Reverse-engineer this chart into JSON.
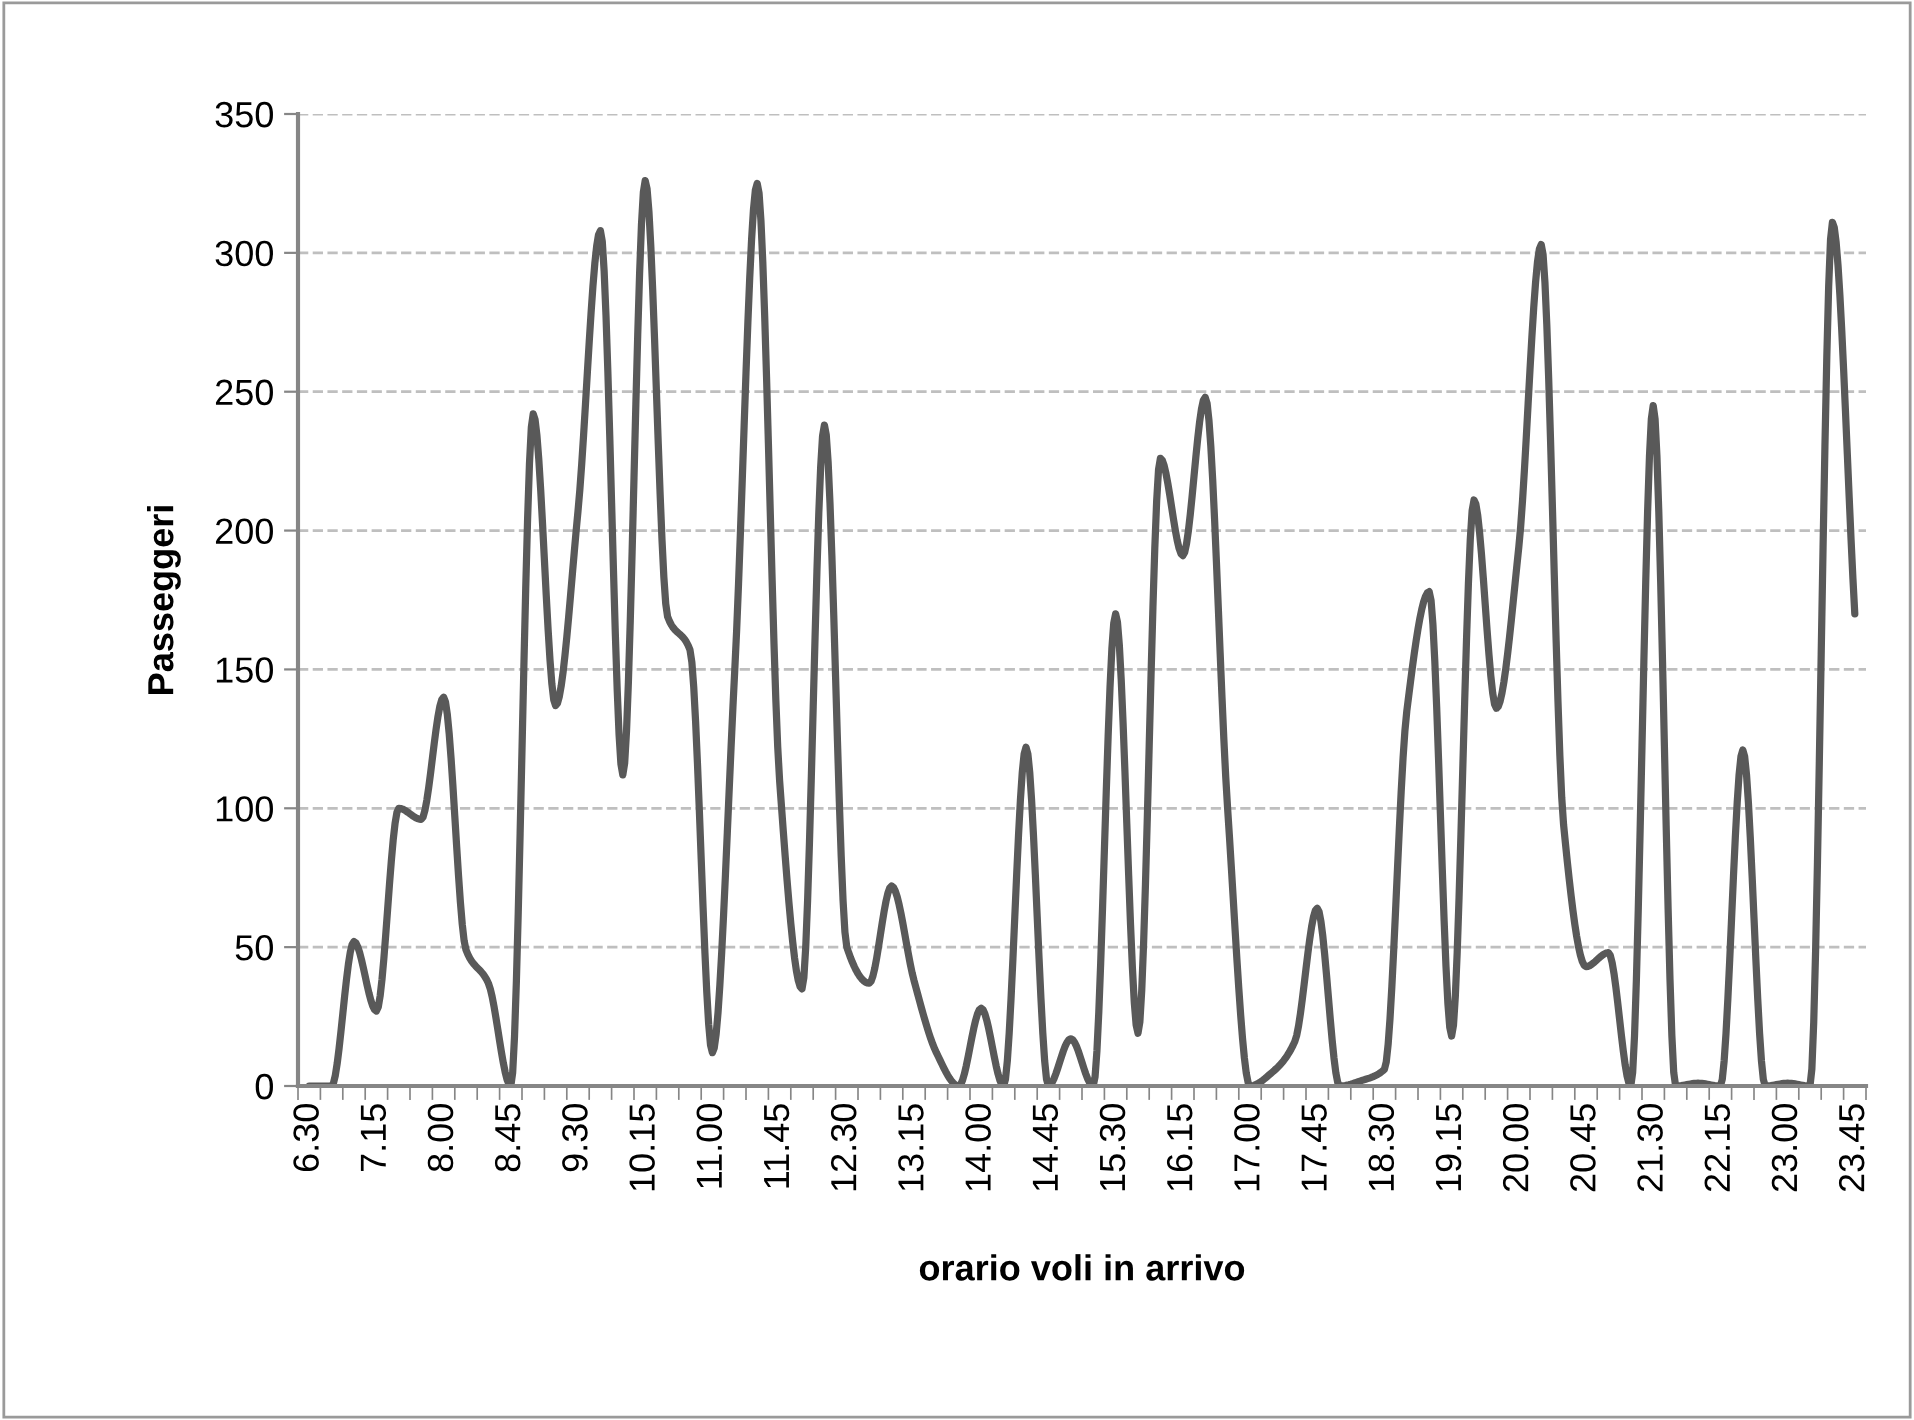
{
  "chart_data": {
    "type": "line",
    "xlabel": "orario voli in arrivo",
    "ylabel": "Passeggeri",
    "categories": [
      "6.30",
      null,
      null,
      "7.15",
      null,
      null,
      "8.00",
      null,
      null,
      "8.45",
      null,
      null,
      "9.30",
      null,
      null,
      "10.15",
      null,
      null,
      "11.00",
      null,
      null,
      "11.45",
      null,
      null,
      "12.30",
      null,
      null,
      "13.15",
      null,
      null,
      "14.00",
      null,
      null,
      "14.45",
      null,
      null,
      "15.30",
      null,
      null,
      "16.15",
      null,
      null,
      "17.00",
      null,
      null,
      "17.45",
      null,
      null,
      "18.30",
      null,
      null,
      "19.15",
      null,
      null,
      "20.00",
      null,
      null,
      "20.45",
      null,
      null,
      "21.30",
      null,
      null,
      "22.15",
      null,
      null,
      "23.00",
      null,
      null,
      "23.45"
    ],
    "series": [
      {
        "color": "#595959",
        "values": [
          0,
          0,
          52,
          27,
          100,
          96,
          140,
          49,
          37,
          0,
          242,
          137,
          207,
          308,
          112,
          326,
          169,
          157,
          12,
          150,
          325,
          110,
          35,
          238,
          50,
          37,
          72,
          38,
          12,
          0,
          28,
          0,
          122,
          0,
          17,
          0,
          170,
          19,
          226,
          191,
          248,
          100,
          0,
          5,
          16,
          64,
          0,
          2,
          6,
          135,
          178,
          18,
          211,
          136,
          194,
          303,
          94,
          43,
          48,
          0,
          245,
          0,
          1,
          0,
          121,
          0,
          1,
          0,
          311,
          170
        ]
      }
    ],
    "ylim": [
      0,
      350
    ],
    "yticks": [
      0,
      50,
      100,
      150,
      200,
      250,
      300,
      350
    ],
    "grid": "y",
    "marker": "none",
    "line_style": "solid"
  }
}
